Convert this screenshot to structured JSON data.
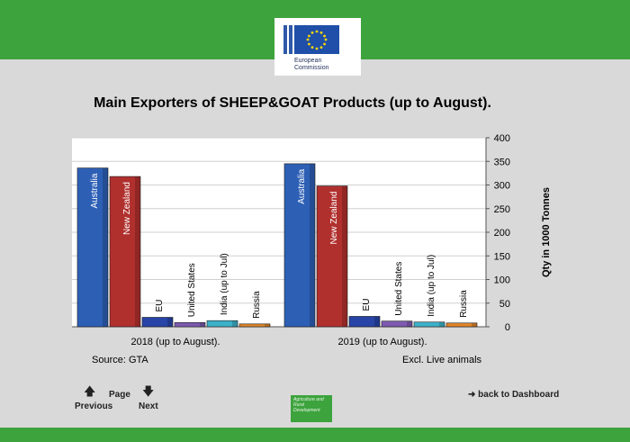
{
  "header": {
    "org_line1": "European",
    "org_line2": "Commission"
  },
  "title": "Main Exporters of SHEEP&GOAT Products (up to August).",
  "notes": {
    "source": "Source: GTA",
    "excl": "Excl. Live animals"
  },
  "nav": {
    "page_label": "Page",
    "previous_label": "Previous",
    "next_label": "Next",
    "back_label": "back to Dashboard"
  },
  "footer_logo_text": "Agriculture and Rural Development",
  "colors": {
    "brand_green": "#3da33d",
    "australia": "#2d5fb5",
    "new_zealand": "#b0302e",
    "eu": "#2744a6",
    "united_states": "#7d5ab0",
    "india": "#3cb1c9",
    "russia": "#e0862a"
  },
  "chart_data": {
    "type": "bar",
    "groups": [
      "2018 (up to August).",
      "2019 (up to August)."
    ],
    "series": [
      {
        "name": "Australia",
        "values": [
          336,
          345
        ]
      },
      {
        "name": "New Zealand",
        "values": [
          318,
          298
        ]
      },
      {
        "name": "EU",
        "values": [
          20,
          22
        ]
      },
      {
        "name": "United States",
        "values": [
          9,
          12
        ]
      },
      {
        "name": "India (up to Jul)",
        "values": [
          13,
          10
        ]
      },
      {
        "name": "Russia",
        "values": [
          6,
          8
        ]
      }
    ],
    "ylabel": "Qty in 1000 Tonnes",
    "ylim": [
      0,
      400
    ],
    "yticks": [
      0,
      50,
      100,
      150,
      200,
      250,
      300,
      350,
      400
    ],
    "grid": true
  }
}
